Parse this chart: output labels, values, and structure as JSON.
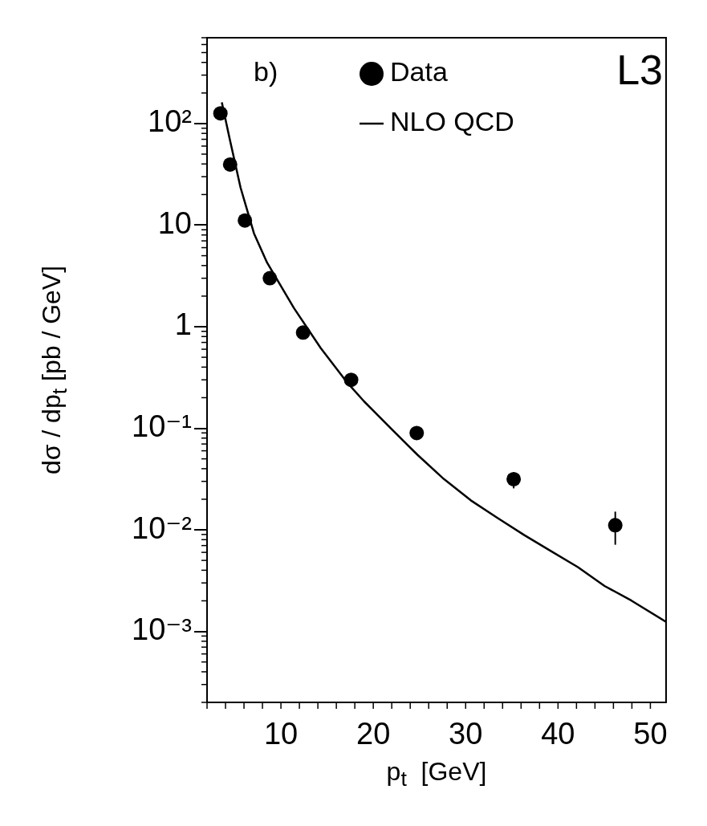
{
  "chart_data": {
    "type": "scatter",
    "xlabel": "p$_{t}$  [GeV]",
    "ylabel": "dσ / dp$_{t}$ [pb / GeV]",
    "annotations": [
      "b)",
      "L3"
    ],
    "xlim": [
      2,
      51.7
    ],
    "xticks": [
      10,
      20,
      30,
      40,
      50
    ],
    "ylim": [
      0.0002,
      700
    ],
    "yticks": [
      {
        "value": 0.001,
        "label": "10⁻³"
      },
      {
        "value": 0.01,
        "label": "10⁻²"
      },
      {
        "value": 0.1,
        "label": "10⁻¹"
      },
      {
        "value": 1,
        "label": "1"
      },
      {
        "value": 10,
        "label": "10"
      },
      {
        "value": 100,
        "label": "10²"
      }
    ],
    "log": "y",
    "grid": false,
    "legend": "top",
    "series": [
      {
        "name": "Data",
        "type": "scatter",
        "color": "#000000",
        "marker": "circle",
        "x": [
          3.45,
          4.5,
          6.1,
          8.8,
          12.4,
          17.6,
          24.7,
          35.2,
          46.2
        ],
        "values": [
          126,
          39.5,
          11.1,
          3.0,
          0.875,
          0.3,
          0.0897,
          0.0315,
          0.0111
        ],
        "errors": [
          null,
          null,
          null,
          null,
          null,
          null,
          null,
          [
            0.0256,
            0.0369
          ],
          [
            0.00713,
            0.0151
          ]
        ]
      },
      {
        "name": "NLO QCD",
        "type": "line",
        "color": "#000000",
        "marker": "none",
        "line_style": "solid",
        "x": [
          3.6,
          4.47,
          5.63,
          7.08,
          8.5,
          11.4,
          14.3,
          17.2,
          19.0,
          21.9,
          24.8,
          27.65,
          30.56,
          33.45,
          36.35,
          39.25,
          42.15,
          45.04,
          47.95,
          51.7
        ],
        "values": [
          162,
          69.5,
          23.4,
          8.3,
          4.27,
          1.53,
          0.617,
          0.28,
          0.184,
          0.1,
          0.0546,
          0.0316,
          0.0195,
          0.0131,
          0.00887,
          0.00617,
          0.00429,
          0.0028,
          0.00201,
          0.00124
        ]
      }
    ]
  }
}
